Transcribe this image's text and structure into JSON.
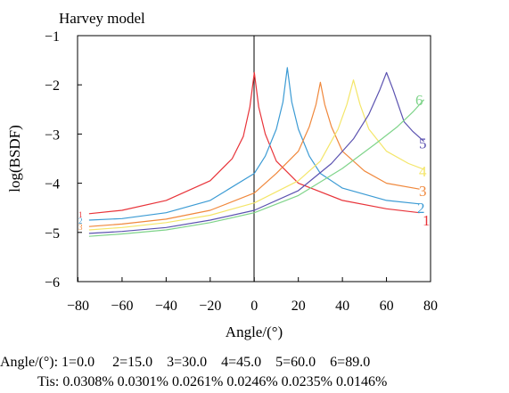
{
  "chart_data": {
    "type": "line",
    "title": "Harvey model",
    "xlabel": "Angle/(°)",
    "ylabel": "log(BSDF)",
    "xlim": [
      -80,
      80
    ],
    "ylim": [
      -6,
      -1
    ],
    "xticks": [
      -80,
      -60,
      -40,
      -20,
      0,
      20,
      40,
      60,
      80
    ],
    "yticks": [
      -1,
      -2,
      -3,
      -4,
      -5,
      -6
    ],
    "x_tick_labels": [
      "−80",
      "−60",
      "−40",
      "−20",
      "0",
      "20",
      "40",
      "60",
      "80"
    ],
    "y_tick_labels": [
      "−1",
      "−2",
      "−3",
      "−4",
      "−5",
      "−6"
    ],
    "grid": false,
    "legend": "inline-labels-right",
    "series": [
      {
        "name": "1",
        "color": "#e8343a",
        "x": [
          -75,
          -60,
          -40,
          -20,
          -10,
          -5,
          -2,
          0,
          2,
          5,
          10,
          20,
          40,
          60,
          75
        ],
        "y": [
          -4.62,
          -4.55,
          -4.35,
          -3.95,
          -3.5,
          -3.05,
          -2.45,
          -1.75,
          -2.45,
          -3.0,
          -3.55,
          -4.0,
          -4.35,
          -4.52,
          -4.6
        ]
      },
      {
        "name": "2",
        "color": "#3c9bd4",
        "x": [
          -75,
          -60,
          -40,
          -20,
          0,
          5,
          10,
          13,
          15,
          17,
          20,
          25,
          30,
          40,
          60,
          75
        ],
        "y": [
          -4.75,
          -4.72,
          -4.6,
          -4.35,
          -3.8,
          -3.45,
          -2.9,
          -2.35,
          -1.65,
          -2.35,
          -2.9,
          -3.45,
          -3.8,
          -4.1,
          -4.35,
          -4.42
        ]
      },
      {
        "name": "3",
        "color": "#f0883c",
        "x": [
          -75,
          -60,
          -40,
          -20,
          0,
          10,
          20,
          25,
          28,
          30,
          32,
          35,
          40,
          50,
          60,
          75
        ],
        "y": [
          -4.88,
          -4.83,
          -4.73,
          -4.55,
          -4.2,
          -3.8,
          -3.35,
          -2.85,
          -2.4,
          -1.95,
          -2.4,
          -2.85,
          -3.35,
          -3.75,
          -4.0,
          -4.12
        ]
      },
      {
        "name": "4",
        "color": "#f4e66a",
        "x": [
          -75,
          -60,
          -40,
          -20,
          0,
          20,
          30,
          38,
          42,
          45,
          48,
          52,
          60,
          70,
          77
        ],
        "y": [
          -4.95,
          -4.9,
          -4.8,
          -4.65,
          -4.4,
          -3.95,
          -3.55,
          -2.9,
          -2.4,
          -1.9,
          -2.4,
          -2.9,
          -3.35,
          -3.6,
          -3.72
        ]
      },
      {
        "name": "5",
        "color": "#5b52b0",
        "x": [
          -75,
          -60,
          -40,
          -20,
          0,
          20,
          35,
          45,
          52,
          57,
          60,
          63,
          68,
          72,
          77
        ],
        "y": [
          -5.02,
          -4.98,
          -4.9,
          -4.75,
          -4.55,
          -4.15,
          -3.6,
          -3.1,
          -2.6,
          -2.1,
          -1.75,
          -2.1,
          -2.75,
          -2.95,
          -3.15
        ]
      },
      {
        "name": "6",
        "color": "#7fd48a",
        "x": [
          -75,
          -60,
          -40,
          -20,
          0,
          20,
          40,
          55,
          65,
          72,
          77
        ],
        "y": [
          -5.08,
          -5.03,
          -4.95,
          -4.8,
          -4.6,
          -4.25,
          -3.7,
          -3.2,
          -2.85,
          -2.55,
          -2.3
        ]
      }
    ]
  },
  "footnote": {
    "angle_line": "Angle/(°): 1=0.0     2=15.0    3=30.0    4=45.0    5=60.0    6=89.0",
    "tis_line": "Tis: 0.0308% 0.0301% 0.0261% 0.0246% 0.0235% 0.0146%"
  }
}
